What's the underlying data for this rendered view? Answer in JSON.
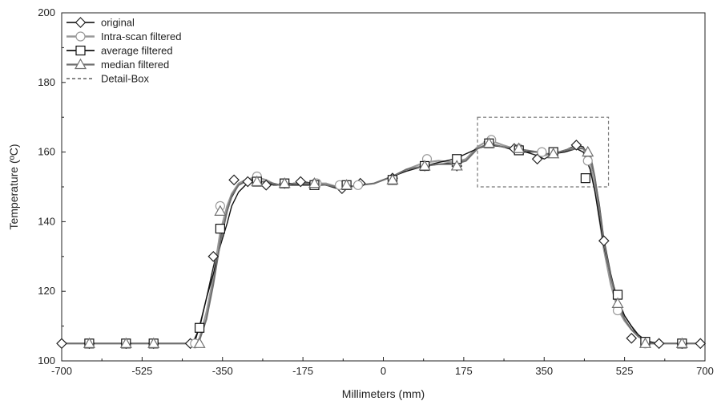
{
  "chart_data": {
    "type": "line",
    "xlabel": "Millimeters (mm)",
    "ylabel": "Temperature (ºC)",
    "xlim": [
      -700,
      700
    ],
    "ylim": [
      100,
      200
    ],
    "xticks": [
      -700,
      -525,
      -350,
      -175,
      0,
      175,
      350,
      525,
      700
    ],
    "yticks": [
      100,
      120,
      140,
      160,
      180,
      200
    ],
    "grid": false,
    "legend_position": "top-left",
    "detail_box": {
      "x": [
        205,
        490
      ],
      "y": [
        150,
        170
      ]
    },
    "series": [
      {
        "name": "original",
        "marker": "diamond",
        "color": "#222222",
        "dash": "none",
        "x": [
          -700,
          -640,
          -560,
          -500,
          -420,
          -410,
          -400,
          -385,
          -370,
          -355,
          -340,
          -330,
          -315,
          -300,
          -285,
          -270,
          -255,
          -240,
          -225,
          -210,
          -195,
          -175,
          -150,
          -125,
          -100,
          -75,
          -50,
          -20,
          0,
          20,
          50,
          90,
          120,
          155,
          180,
          205,
          230,
          260,
          285,
          310,
          335,
          350,
          370,
          395,
          420,
          435,
          450,
          460,
          470,
          480,
          495,
          510,
          525,
          540,
          555,
          570,
          580,
          600,
          620,
          650,
          690
        ],
        "y": [
          105,
          105,
          105,
          105,
          105,
          105.5,
          110,
          118,
          127,
          135,
          143,
          147,
          150.5,
          152,
          152,
          151.5,
          151.5,
          150.5,
          150.5,
          151,
          151,
          151.5,
          151,
          150.5,
          149.5,
          150,
          150.5,
          151,
          152,
          153,
          155,
          156,
          156.5,
          157,
          157.5,
          161,
          162.5,
          161.5,
          160.5,
          160,
          159,
          158,
          159.5,
          160.5,
          162,
          161.5,
          158,
          153,
          145,
          135,
          125,
          117,
          113,
          110,
          107,
          106,
          105,
          105,
          105,
          105,
          105
        ]
      },
      {
        "name": "Intra-scan filtered",
        "marker": "circle",
        "color": "#9a9a9a",
        "dash": "none",
        "x": [
          -700,
          -640,
          -560,
          -500,
          -420,
          -410,
          -400,
          -385,
          -370,
          -355,
          -340,
          -330,
          -315,
          -300,
          -285,
          -270,
          -255,
          -240,
          -225,
          -210,
          -195,
          -175,
          -150,
          -125,
          -100,
          -75,
          -50,
          -20,
          0,
          20,
          50,
          90,
          120,
          155,
          180,
          205,
          230,
          260,
          285,
          310,
          335,
          350,
          370,
          395,
          420,
          435,
          450,
          460,
          470,
          480,
          495,
          510,
          525,
          540,
          555,
          570,
          580,
          600,
          620,
          650,
          690
        ],
        "y": [
          105,
          105,
          105,
          105,
          105,
          105,
          106.5,
          114,
          124,
          137,
          144.5,
          148,
          151,
          152,
          152.5,
          152.5,
          152,
          151,
          150.5,
          150.5,
          151,
          151,
          151,
          151,
          150,
          150,
          150.5,
          151,
          152,
          153,
          155,
          157,
          157.5,
          157,
          158,
          161.5,
          163.5,
          162,
          161,
          160.5,
          160,
          159,
          159.5,
          160.5,
          161.5,
          161,
          157,
          150,
          141,
          132,
          122,
          115,
          111.5,
          109,
          107,
          106,
          105,
          105,
          105,
          105,
          105
        ]
      },
      {
        "name": "average filtered",
        "marker": "square",
        "color": "#111111",
        "dash": "none",
        "x": [
          -700,
          -640,
          -560,
          -500,
          -420,
          -410,
          -400,
          -385,
          -370,
          -355,
          -340,
          -330,
          -315,
          -300,
          -285,
          -270,
          -255,
          -240,
          -225,
          -210,
          -195,
          -175,
          -150,
          -125,
          -100,
          -75,
          -50,
          -20,
          0,
          20,
          50,
          90,
          120,
          155,
          180,
          205,
          230,
          260,
          285,
          310,
          335,
          350,
          370,
          395,
          420,
          435,
          450,
          460,
          470,
          480,
          495,
          510,
          525,
          540,
          555,
          570,
          580,
          600,
          620,
          650,
          690
        ],
        "y": [
          105,
          105,
          105,
          105,
          105,
          106.5,
          109.5,
          118,
          125,
          133,
          139.5,
          144.5,
          148.5,
          150.5,
          151.5,
          151.5,
          151.5,
          151,
          150.5,
          150.5,
          150.5,
          150.5,
          150.5,
          150.5,
          150,
          150,
          150.5,
          151,
          152,
          153,
          154.5,
          156,
          157,
          158,
          159.5,
          161,
          162,
          161.5,
          160.5,
          160,
          160,
          159.5,
          159.5,
          160,
          161,
          160,
          155,
          149,
          141,
          133,
          124,
          118,
          113,
          110,
          107.5,
          106,
          105.5,
          105,
          105,
          105,
          105
        ]
      },
      {
        "name": "median filtered",
        "marker": "triangle",
        "color": "#6f6f6f",
        "dash": "none",
        "x": [
          -700,
          -640,
          -560,
          -500,
          -420,
          -410,
          -400,
          -385,
          -370,
          -355,
          -340,
          -330,
          -315,
          -300,
          -285,
          -270,
          -255,
          -240,
          -225,
          -210,
          -195,
          -175,
          -150,
          -125,
          -100,
          -75,
          -50,
          -20,
          0,
          20,
          50,
          90,
          120,
          155,
          180,
          205,
          230,
          260,
          285,
          310,
          335,
          350,
          370,
          395,
          420,
          435,
          450,
          460,
          470,
          480,
          495,
          510,
          525,
          540,
          555,
          570,
          580,
          600,
          620,
          650,
          690
        ],
        "y": [
          105,
          105,
          105,
          105,
          105,
          105,
          106,
          112,
          122,
          134,
          143,
          147.5,
          150.5,
          151.5,
          151.5,
          151.5,
          151.5,
          151,
          150.5,
          150.5,
          151,
          151,
          151,
          150.5,
          150,
          150,
          150.5,
          151,
          152,
          153,
          155,
          156,
          156.5,
          156.5,
          157.5,
          161,
          162.5,
          161.5,
          161,
          160.5,
          160,
          159.5,
          159.5,
          160.5,
          161,
          161,
          159.5,
          153,
          144,
          134,
          124,
          116.5,
          112,
          109,
          107,
          106,
          105,
          105,
          105,
          105,
          105
        ]
      },
      {
        "name": "Detail-Box",
        "marker": "none",
        "color": "#777777",
        "dash": "4,3"
      }
    ],
    "markers": {
      "original": [
        [
          -700,
          105
        ],
        [
          -640,
          105
        ],
        [
          -560,
          105
        ],
        [
          -500,
          105
        ],
        [
          -420,
          105
        ],
        [
          -370,
          130
        ],
        [
          -325,
          152
        ],
        [
          -295,
          151.5
        ],
        [
          -255,
          150.5
        ],
        [
          -215,
          151
        ],
        [
          -180,
          151.5
        ],
        [
          -150,
          151
        ],
        [
          -90,
          149.5
        ],
        [
          -50,
          151
        ],
        [
          20,
          152.5
        ],
        [
          90,
          156
        ],
        [
          160,
          156
        ],
        [
          230,
          163
        ],
        [
          285,
          161
        ],
        [
          335,
          158
        ],
        [
          420,
          162
        ],
        [
          480,
          134.5
        ],
        [
          540,
          106.5
        ],
        [
          600,
          105
        ],
        [
          650,
          105
        ],
        [
          690,
          105
        ]
      ],
      "Intra-scan filtered": [
        [
          -640,
          105
        ],
        [
          -500,
          105
        ],
        [
          -410,
          105
        ],
        [
          -355,
          144.5
        ],
        [
          -275,
          153
        ],
        [
          -215,
          151
        ],
        [
          -145,
          151
        ],
        [
          -95,
          150.5
        ],
        [
          -55,
          150.5
        ],
        [
          20,
          152
        ],
        [
          95,
          158
        ],
        [
          160,
          157
        ],
        [
          235,
          163.5
        ],
        [
          295,
          161
        ],
        [
          345,
          160
        ],
        [
          445,
          157.5
        ],
        [
          510,
          114.5
        ],
        [
          570,
          105
        ],
        [
          650,
          105
        ]
      ],
      "average filtered": [
        [
          -640,
          105
        ],
        [
          -560,
          105
        ],
        [
          -500,
          105
        ],
        [
          -400,
          109.5
        ],
        [
          -355,
          138
        ],
        [
          -275,
          151.5
        ],
        [
          -215,
          151
        ],
        [
          -150,
          150.5
        ],
        [
          -80,
          150.5
        ],
        [
          20,
          152
        ],
        [
          90,
          156
        ],
        [
          160,
          158
        ],
        [
          230,
          162.5
        ],
        [
          295,
          160.5
        ],
        [
          370,
          160
        ],
        [
          440,
          152.5
        ],
        [
          510,
          119
        ],
        [
          570,
          105.5
        ],
        [
          650,
          105
        ]
      ],
      "median filtered": [
        [
          -640,
          105
        ],
        [
          -560,
          105
        ],
        [
          -500,
          105
        ],
        [
          -400,
          105
        ],
        [
          -355,
          143
        ],
        [
          -275,
          151.5
        ],
        [
          -215,
          151
        ],
        [
          -150,
          151
        ],
        [
          -80,
          150.5
        ],
        [
          20,
          152
        ],
        [
          90,
          156
        ],
        [
          160,
          156
        ],
        [
          230,
          162.5
        ],
        [
          295,
          161
        ],
        [
          370,
          159.5
        ],
        [
          445,
          160
        ],
        [
          510,
          116.5
        ],
        [
          570,
          105
        ],
        [
          650,
          105
        ]
      ]
    }
  }
}
